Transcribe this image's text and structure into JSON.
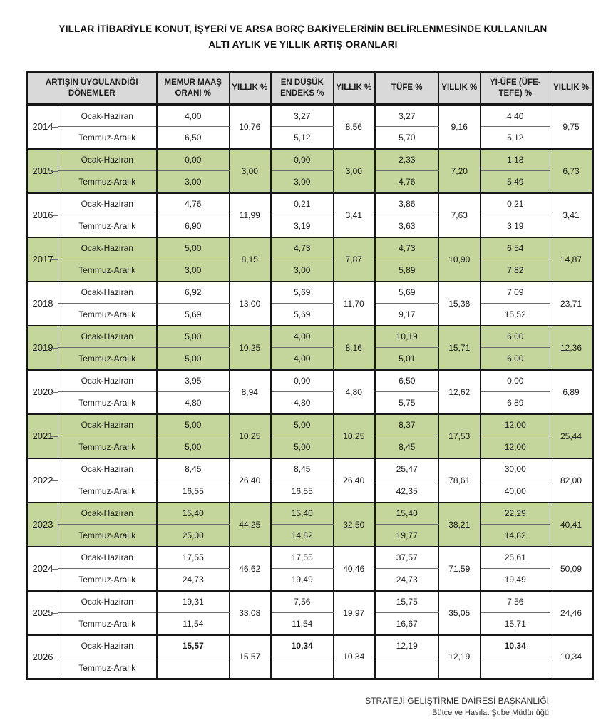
{
  "title": {
    "line1": "YILLAR İTİBARİYLE KONUT, İŞYERİ VE ARSA BORÇ BAKİYELERİNİN BELİRLENMESİNDE KULLANILAN",
    "line2": "ALTI AYLIK VE YILLIK ARTIŞ ORANLARI"
  },
  "colors": {
    "header_bg": "#d9d9d9",
    "shaded_row_bg": "#c4d69b",
    "border_dark": "#161616",
    "divider": "#6b6b6b"
  },
  "table": {
    "columns": [
      "ARTIŞIN UYGULANDIĞI DÖNEMLER",
      "MEMUR MAAŞ ORANI %",
      "YILLIK %",
      "EN DÜŞÜK ENDEKS %",
      "YILLIK %",
      "TÜFE %",
      "YILLIK %",
      "Yİ-ÜFE (ÜFE-TEFE) %",
      "YILLIK %"
    ],
    "period_labels": [
      "Ocak-Haziran",
      "Temmuz-Aralık"
    ],
    "groups": [
      {
        "year": "2014",
        "shaded": false,
        "p1": [
          "4,00",
          "3,27",
          "3,27",
          "4,40"
        ],
        "p2": [
          "6,50",
          "5,12",
          "5,70",
          "5,12"
        ],
        "yillik": [
          "10,76",
          "8,56",
          "9,16",
          "9,75"
        ]
      },
      {
        "year": "2015",
        "shaded": true,
        "p1": [
          "0,00",
          "0,00",
          "2,33",
          "1,18"
        ],
        "p2": [
          "3,00",
          "3,00",
          "4,76",
          "5,49"
        ],
        "yillik": [
          "3,00",
          "3,00",
          "7,20",
          "6,73"
        ]
      },
      {
        "year": "2016",
        "shaded": false,
        "p1": [
          "4,76",
          "0,21",
          "3,86",
          "0,21"
        ],
        "p2": [
          "6,90",
          "3,19",
          "3,63",
          "3,19"
        ],
        "yillik": [
          "11,99",
          "3,41",
          "7,63",
          "3,41"
        ]
      },
      {
        "year": "2017",
        "shaded": true,
        "p1": [
          "5,00",
          "4,73",
          "4,73",
          "6,54"
        ],
        "p2": [
          "3,00",
          "3,00",
          "5,89",
          "7,82"
        ],
        "yillik": [
          "8,15",
          "7,87",
          "10,90",
          "14,87"
        ]
      },
      {
        "year": "2018",
        "shaded": false,
        "p1": [
          "6,92",
          "5,69",
          "5,69",
          "7,09"
        ],
        "p2": [
          "5,69",
          "5,69",
          "9,17",
          "15,52"
        ],
        "yillik": [
          "13,00",
          "11,70",
          "15,38",
          "23,71"
        ]
      },
      {
        "year": "2019",
        "shaded": true,
        "p1": [
          "5,00",
          "4,00",
          "10,19",
          "6,00"
        ],
        "p2": [
          "5,00",
          "4,00",
          "5,01",
          "6,00"
        ],
        "yillik": [
          "10,25",
          "8,16",
          "15,71",
          "12,36"
        ]
      },
      {
        "year": "2020",
        "shaded": false,
        "p1": [
          "3,95",
          "0,00",
          "6,50",
          "0,00"
        ],
        "p2": [
          "4,80",
          "4,80",
          "5,75",
          "6,89"
        ],
        "yillik": [
          "8,94",
          "4,80",
          "12,62",
          "6,89"
        ]
      },
      {
        "year": "2021",
        "shaded": true,
        "p1": [
          "5,00",
          "5,00",
          "8,37",
          "12,00"
        ],
        "p2": [
          "5,00",
          "5,00",
          "8,45",
          "12,00"
        ],
        "yillik": [
          "10,25",
          "10,25",
          "17,53",
          "25,44"
        ]
      },
      {
        "year": "2022",
        "shaded": false,
        "p1": [
          "8,45",
          "8,45",
          "25,47",
          "30,00"
        ],
        "p2": [
          "16,55",
          "16,55",
          "42,35",
          "40,00"
        ],
        "yillik": [
          "26,40",
          "26,40",
          "78,61",
          "82,00"
        ]
      },
      {
        "year": "2023",
        "shaded": true,
        "p1": [
          "15,40",
          "15,40",
          "15,40",
          "22,29"
        ],
        "p2": [
          "25,00",
          "14,82",
          "19,77",
          "14,82"
        ],
        "yillik": [
          "44,25",
          "32,50",
          "38,21",
          "40,41"
        ]
      },
      {
        "year": "2024",
        "shaded": false,
        "p1": [
          "17,55",
          "17,55",
          "37,57",
          "25,61"
        ],
        "p2": [
          "24,73",
          "19,49",
          "24,73",
          "19,49"
        ],
        "yillik": [
          "46,62",
          "40,46",
          "71,59",
          "50,09"
        ]
      },
      {
        "year": "2025",
        "shaded": false,
        "p1": [
          "19,31",
          "7,56",
          "15,75",
          "7,56"
        ],
        "p2": [
          "11,54",
          "11,54",
          "16,67",
          "15,71"
        ],
        "yillik": [
          "33,08",
          "19,97",
          "35,05",
          "24,46"
        ]
      },
      {
        "year": "2026",
        "shaded": false,
        "p1": [
          "15,57",
          "10,34",
          "12,19",
          "10,34"
        ],
        "p1_bold": [
          true,
          true,
          false,
          true
        ],
        "p2": [
          "",
          "",
          "",
          ""
        ],
        "yillik": [
          "15,57",
          "10,34",
          "12,19",
          "10,34"
        ]
      }
    ]
  },
  "footer": {
    "line1": "STRATEJİ GELİŞTİRME DAİRESİ BAŞKANLIĞI",
    "line2": "Bütçe ve Hasılat Şube Müdürlüğü"
  }
}
